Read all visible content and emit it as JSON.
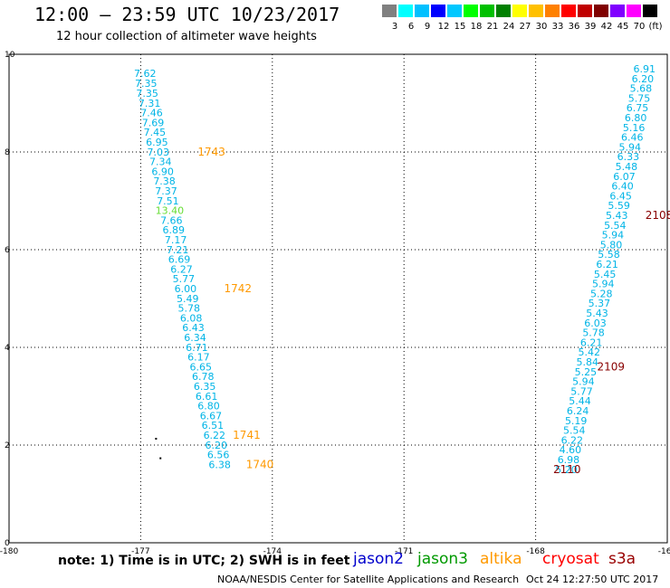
{
  "title": "12:00 – 23:59 UTC 10/23/2017",
  "subtitle": "12 hour collection of altimeter wave heights",
  "note": "note:  1) Time is in UTC;  2) SWH is in feet",
  "satellites": [
    {
      "name": "jason2",
      "color": "#0000cc"
    },
    {
      "name": "jason3",
      "color": "#009900"
    },
    {
      "name": "altika",
      "color": "#ff9900"
    },
    {
      "name": "cryosat",
      "color": "#ff0000"
    },
    {
      "name": "s3a",
      "color": "#990000"
    }
  ],
  "credit": "NOAA/NESDIS Center for Satellite Applications and Research",
  "timestamp": "Oct 24 12:27:50 UTC 2017",
  "legend": {
    "colors": [
      "#808080",
      "#00ffff",
      "#00c0ff",
      "#0000ff",
      "#00c8ff",
      "#00ff00",
      "#00c000",
      "#008000",
      "#ffff00",
      "#ffc000",
      "#ff8000",
      "#ff0000",
      "#c00000",
      "#800000",
      "#8000ff",
      "#ff00ff",
      "#000000"
    ],
    "labels": [
      "3",
      "6",
      "9",
      "12",
      "15",
      "18",
      "21",
      "24",
      "27",
      "30",
      "33",
      "36",
      "39",
      "42",
      "45",
      "70",
      "(ft)"
    ]
  },
  "chart_data": {
    "type": "scatter",
    "xlim": [
      -180,
      -165
    ],
    "ylim": [
      0,
      10
    ],
    "xticks": [
      "-180",
      "-177",
      "-174",
      "-171",
      "-168",
      "-165"
    ],
    "yticks": [
      "0",
      "2",
      "4",
      "6",
      "8",
      "10"
    ],
    "grid": true,
    "tracks": [
      {
        "color": "#00b4e6",
        "points": [
          {
            "x": -176.9,
            "y": 9.54,
            "label": "7.62"
          },
          {
            "x": -176.88,
            "y": 9.33,
            "label": "7.35"
          },
          {
            "x": -176.85,
            "y": 9.13,
            "label": "7.35"
          },
          {
            "x": -176.8,
            "y": 8.93,
            "label": "7.31"
          },
          {
            "x": -176.75,
            "y": 8.73,
            "label": "7.46"
          },
          {
            "x": -176.72,
            "y": 8.53,
            "label": "7.69"
          },
          {
            "x": -176.68,
            "y": 8.33,
            "label": "7.45"
          },
          {
            "x": -176.63,
            "y": 8.13,
            "label": "6.95"
          },
          {
            "x": -176.6,
            "y": 7.93,
            "label": "7.03"
          },
          {
            "x": -176.55,
            "y": 7.73,
            "label": "7.34"
          },
          {
            "x": -176.5,
            "y": 7.53,
            "label": "6.90"
          },
          {
            "x": -176.46,
            "y": 7.33,
            "label": "7.38"
          },
          {
            "x": -176.42,
            "y": 7.13,
            "label": "7.37"
          },
          {
            "x": -176.38,
            "y": 6.93,
            "label": "7.51"
          },
          {
            "x": -176.34,
            "y": 6.73,
            "label": "13.40",
            "color": "#66dd33"
          },
          {
            "x": -176.3,
            "y": 6.53,
            "label": "7.66"
          },
          {
            "x": -176.25,
            "y": 6.33,
            "label": "6.89"
          },
          {
            "x": -176.2,
            "y": 6.13,
            "label": "7.17"
          },
          {
            "x": -176.16,
            "y": 5.93,
            "label": "7.21"
          },
          {
            "x": -176.12,
            "y": 5.73,
            "label": "6.69"
          },
          {
            "x": -176.07,
            "y": 5.53,
            "label": "6.27"
          },
          {
            "x": -176.02,
            "y": 5.33,
            "label": "5.77"
          },
          {
            "x": -175.98,
            "y": 5.13,
            "label": "6.00"
          },
          {
            "x": -175.93,
            "y": 4.93,
            "label": "5.49"
          },
          {
            "x": -175.9,
            "y": 4.73,
            "label": "5.78"
          },
          {
            "x": -175.85,
            "y": 4.53,
            "label": "6.08"
          },
          {
            "x": -175.8,
            "y": 4.33,
            "label": "6.43"
          },
          {
            "x": -175.76,
            "y": 4.13,
            "label": "6.34"
          },
          {
            "x": -175.72,
            "y": 3.93,
            "label": "6.71"
          },
          {
            "x": -175.68,
            "y": 3.73,
            "label": "6.17"
          },
          {
            "x": -175.63,
            "y": 3.53,
            "label": "6.65"
          },
          {
            "x": -175.58,
            "y": 3.33,
            "label": "6.78"
          },
          {
            "x": -175.54,
            "y": 3.13,
            "label": "6.35"
          },
          {
            "x": -175.5,
            "y": 2.93,
            "label": "6.61"
          },
          {
            "x": -175.45,
            "y": 2.73,
            "label": "6.80"
          },
          {
            "x": -175.4,
            "y": 2.53,
            "label": "6.67"
          },
          {
            "x": -175.36,
            "y": 2.33,
            "label": "6.51"
          },
          {
            "x": -175.32,
            "y": 2.13,
            "label": "6.22"
          },
          {
            "x": -175.28,
            "y": 1.93,
            "label": "6.20"
          },
          {
            "x": -175.23,
            "y": 1.73,
            "label": "6.56"
          },
          {
            "x": -175.2,
            "y": 1.53,
            "label": "6.38"
          }
        ]
      },
      {
        "color": "#00b4e6",
        "points": [
          {
            "x": -165.52,
            "y": 9.63,
            "label": "6.91"
          },
          {
            "x": -165.56,
            "y": 9.43,
            "label": "6.20"
          },
          {
            "x": -165.6,
            "y": 9.23,
            "label": "5.68"
          },
          {
            "x": -165.64,
            "y": 9.03,
            "label": "5.75"
          },
          {
            "x": -165.68,
            "y": 8.83,
            "label": "6.75"
          },
          {
            "x": -165.72,
            "y": 8.63,
            "label": "6.80"
          },
          {
            "x": -165.76,
            "y": 8.43,
            "label": "5.16"
          },
          {
            "x": -165.8,
            "y": 8.23,
            "label": "6.46"
          },
          {
            "x": -165.85,
            "y": 8.03,
            "label": "5.94"
          },
          {
            "x": -165.89,
            "y": 7.83,
            "label": "6.33"
          },
          {
            "x": -165.93,
            "y": 7.63,
            "label": "5.48"
          },
          {
            "x": -165.98,
            "y": 7.43,
            "label": "6.07"
          },
          {
            "x": -166.02,
            "y": 7.23,
            "label": "6.40"
          },
          {
            "x": -166.06,
            "y": 7.03,
            "label": "6.45"
          },
          {
            "x": -166.1,
            "y": 6.83,
            "label": "5.59"
          },
          {
            "x": -166.15,
            "y": 6.63,
            "label": "5.43"
          },
          {
            "x": -166.19,
            "y": 6.43,
            "label": "5.54"
          },
          {
            "x": -166.24,
            "y": 6.23,
            "label": "5.94"
          },
          {
            "x": -166.28,
            "y": 6.03,
            "label": "5.80"
          },
          {
            "x": -166.33,
            "y": 5.83,
            "label": "5.58"
          },
          {
            "x": -166.37,
            "y": 5.63,
            "label": "6.21"
          },
          {
            "x": -166.42,
            "y": 5.43,
            "label": "5.45"
          },
          {
            "x": -166.46,
            "y": 5.23,
            "label": "5.94"
          },
          {
            "x": -166.5,
            "y": 5.03,
            "label": "5.28"
          },
          {
            "x": -166.55,
            "y": 4.83,
            "label": "5.37"
          },
          {
            "x": -166.6,
            "y": 4.63,
            "label": "5.43"
          },
          {
            "x": -166.64,
            "y": 4.43,
            "label": "6.03"
          },
          {
            "x": -166.68,
            "y": 4.23,
            "label": "5.78"
          },
          {
            "x": -166.73,
            "y": 4.03,
            "label": "6.21"
          },
          {
            "x": -166.78,
            "y": 3.83,
            "label": "5.42"
          },
          {
            "x": -166.82,
            "y": 3.63,
            "label": "5.84"
          },
          {
            "x": -166.86,
            "y": 3.43,
            "label": "5.25"
          },
          {
            "x": -166.91,
            "y": 3.23,
            "label": "5.94"
          },
          {
            "x": -166.95,
            "y": 3.03,
            "label": "5.77"
          },
          {
            "x": -166.99,
            "y": 2.83,
            "label": "5.44"
          },
          {
            "x": -167.04,
            "y": 2.63,
            "label": "6.24"
          },
          {
            "x": -167.08,
            "y": 2.43,
            "label": "5.19"
          },
          {
            "x": -167.12,
            "y": 2.23,
            "label": "5.54"
          },
          {
            "x": -167.17,
            "y": 2.03,
            "label": "6.22"
          },
          {
            "x": -167.21,
            "y": 1.83,
            "label": "4.60"
          },
          {
            "x": -167.25,
            "y": 1.63,
            "label": "6.98"
          },
          {
            "x": -167.3,
            "y": 1.43,
            "label": "5.20"
          }
        ]
      }
    ],
    "time_labels": [
      {
        "x": -175.7,
        "y": 7.93,
        "label": "1743",
        "color": "#ff9900"
      },
      {
        "x": -175.1,
        "y": 5.13,
        "label": "1742",
        "color": "#ff9900"
      },
      {
        "x": -174.9,
        "y": 2.13,
        "label": "1741",
        "color": "#ff9900"
      },
      {
        "x": -174.6,
        "y": 1.53,
        "label": "1740",
        "color": "#ff9900"
      },
      {
        "x": -165.5,
        "y": 6.63,
        "label": "2108",
        "color": "#880000"
      },
      {
        "x": -166.6,
        "y": 3.53,
        "label": "2109",
        "color": "#880000"
      },
      {
        "x": -167.6,
        "y": 1.43,
        "label": "2110",
        "color": "#880000"
      }
    ],
    "dots": [
      {
        "x": -176.65,
        "y": 2.13
      },
      {
        "x": -176.55,
        "y": 1.73
      }
    ]
  }
}
